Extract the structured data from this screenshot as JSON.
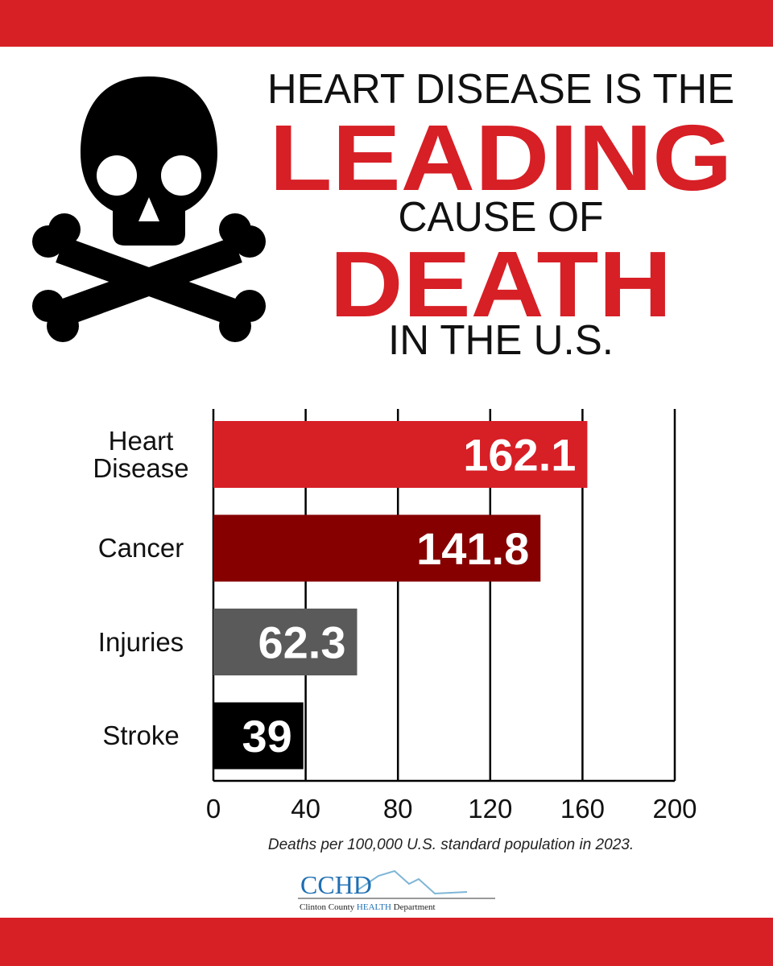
{
  "headline": {
    "line1": "HEART DISEASE IS THE",
    "line2": "LEADING",
    "line3": "CAUSE OF",
    "line4": "DEATH",
    "line5": "IN THE U.S."
  },
  "chart_data": {
    "type": "bar",
    "orientation": "horizontal",
    "categories": [
      "Heart Disease",
      "Cancer",
      "Injuries",
      "Stroke"
    ],
    "values": [
      162.1,
      141.8,
      62.3,
      39
    ],
    "colors": [
      "#d71f26",
      "#860000",
      "#5a5a5a",
      "#000000"
    ],
    "xlim": [
      0,
      200
    ],
    "xticks": [
      0,
      40,
      80,
      120,
      160,
      200
    ],
    "grid": true,
    "caption": "Deaths per 100,000 U.S. standard population in 2023."
  },
  "logo": {
    "abbr": "CCHD",
    "name_start": "Clinton County",
    "name_highlight": "HEALTH",
    "name_end": "Department"
  }
}
